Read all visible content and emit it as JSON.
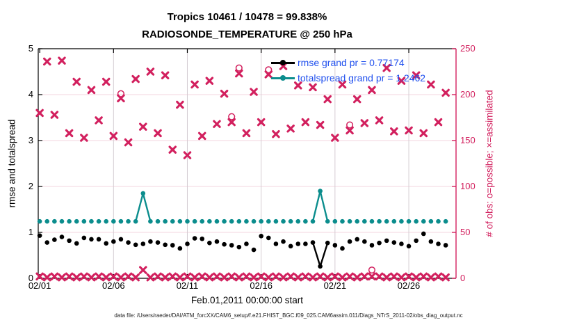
{
  "title": {
    "line1": "Tropics 10461 / 10478 = 99.838%",
    "line2": "RADIOSONDE_TEMPERATURE @ 250 hPa"
  },
  "axis": {
    "y_left_label": "rmse and totalspread",
    "y_right_label": "# of obs: o=possible; ×=assimilated",
    "x_label": "Feb.01,2011 00:00:00 start",
    "y_left_ticks": [
      0,
      1,
      2,
      3,
      4,
      5
    ],
    "y_right_ticks": [
      0,
      50,
      100,
      150,
      200,
      250
    ],
    "x_ticks": [
      {
        "t": 1,
        "label": "02/01"
      },
      {
        "t": 6,
        "label": "02/06"
      },
      {
        "t": 11,
        "label": "02/11"
      },
      {
        "t": 16,
        "label": "02/16"
      },
      {
        "t": 21,
        "label": "02/21"
      },
      {
        "t": 26,
        "label": "02/26"
      }
    ]
  },
  "legend": {
    "items": [
      {
        "label": "rmse grand pr = 0.77174",
        "color": "#000000"
      },
      {
        "label": "totalspread grand pr = 1.2462",
        "color": "#0b8d8d"
      }
    ],
    "text_color": "#2050ee"
  },
  "caption": "data file: /Users/raeder/DAI/ATM_forcXX/CAM6_setup/f.e21.FHIST_BGC.f09_025.CAM6assim.011/Diags_NTrS_2011-02/obs_diag_output.nc",
  "colors": {
    "obs_crimson": "#d2205e",
    "rmse_black": "#000000",
    "totalspread_teal": "#0b8d8d",
    "grid_horizontal": "#f3d4df",
    "grid_vertical": "#d4ccd2",
    "axis_left": "#000000",
    "axis_right": "#d2205e",
    "legend_text": "#2050ee"
  },
  "chart_data": {
    "type": "line",
    "x_label_note": "day of Feb 2011, two samples per day",
    "x": [
      1,
      1.5,
      2,
      2.5,
      3,
      3.5,
      4,
      4.5,
      5,
      5.5,
      6,
      6.5,
      7,
      7.5,
      8,
      8.5,
      9,
      9.5,
      10,
      10.5,
      11,
      11.5,
      12,
      12.5,
      13,
      13.5,
      14,
      14.5,
      15,
      15.5,
      16,
      16.5,
      17,
      17.5,
      18,
      18.5,
      19,
      19.5,
      20,
      20.5,
      21,
      21.5,
      22,
      22.5,
      23,
      23.5,
      24,
      24.5,
      25,
      25.5,
      26,
      26.5,
      27,
      27.5,
      28,
      28.5
    ],
    "xlim": [
      0.9,
      29.2
    ],
    "ylim_left": [
      0,
      5
    ],
    "ylim_right": [
      0,
      250
    ],
    "series": [
      {
        "name": "rmse",
        "axis": "left",
        "marker": "dot",
        "color": "#000000",
        "values": [
          0.93,
          0.78,
          0.84,
          0.9,
          0.82,
          0.76,
          0.88,
          0.85,
          0.85,
          0.76,
          0.8,
          0.85,
          0.78,
          0.73,
          0.75,
          0.8,
          0.78,
          0.73,
          0.72,
          0.65,
          0.75,
          0.87,
          0.86,
          0.77,
          0.8,
          0.74,
          0.72,
          0.68,
          0.75,
          0.62,
          0.92,
          0.88,
          0.75,
          0.8,
          0.7,
          0.75,
          0.75,
          0.78,
          0.26,
          0.77,
          0.72,
          0.65,
          0.8,
          0.85,
          0.8,
          0.72,
          0.77,
          0.82,
          0.78,
          0.75,
          0.7,
          0.82,
          0.97,
          0.8,
          0.75,
          0.72
        ]
      },
      {
        "name": "totalspread",
        "axis": "left",
        "marker": "dot",
        "color": "#0b8d8d",
        "values": [
          1.24,
          1.24,
          1.24,
          1.24,
          1.24,
          1.24,
          1.24,
          1.24,
          1.24,
          1.24,
          1.24,
          1.24,
          1.24,
          1.24,
          1.85,
          1.24,
          1.24,
          1.24,
          1.24,
          1.24,
          1.24,
          1.24,
          1.24,
          1.24,
          1.24,
          1.24,
          1.24,
          1.24,
          1.24,
          1.24,
          1.24,
          1.24,
          1.24,
          1.24,
          1.24,
          1.24,
          1.24,
          1.24,
          1.9,
          1.24,
          1.24,
          1.24,
          1.24,
          1.24,
          1.24,
          1.24,
          1.24,
          1.24,
          1.24,
          1.24,
          1.24,
          1.24,
          1.24,
          1.24,
          1.24,
          1.24
        ]
      },
      {
        "name": "n_assimilated",
        "axis": "right",
        "marker": "x",
        "color": "#d2205e",
        "values": [
          180,
          236,
          178,
          237,
          158,
          214,
          153,
          205,
          172,
          214,
          155,
          196,
          148,
          217,
          165,
          225,
          158,
          221,
          140,
          189,
          134,
          211,
          155,
          215,
          168,
          201,
          170,
          223,
          158,
          203,
          170,
          222,
          157,
          231,
          163,
          210,
          170,
          208,
          167,
          195,
          153,
          211,
          161,
          195,
          169,
          205,
          172,
          229,
          160,
          215,
          161,
          221,
          158,
          211,
          170,
          202
        ]
      },
      {
        "name": "n_possible",
        "axis": "right",
        "marker": "o",
        "color": "#d2205e",
        "values": [
          null,
          null,
          null,
          null,
          null,
          null,
          null,
          null,
          null,
          null,
          null,
          201,
          null,
          null,
          null,
          null,
          null,
          null,
          null,
          null,
          null,
          null,
          null,
          null,
          null,
          null,
          176,
          229,
          null,
          null,
          null,
          227,
          null,
          null,
          null,
          null,
          null,
          null,
          null,
          null,
          null,
          null,
          167,
          null,
          null,
          null,
          null,
          null,
          null,
          null,
          null,
          null,
          null,
          null,
          null,
          null
        ]
      },
      {
        "name": "n_assimilated_floor",
        "axis": "right",
        "marker": "x",
        "color": "#d2205e",
        "values": [
          2,
          1,
          2,
          1,
          2,
          1,
          2,
          1,
          2,
          1,
          2,
          1,
          2,
          1,
          9,
          1,
          2,
          1,
          2,
          1,
          2,
          1,
          2,
          1,
          2,
          1,
          2,
          1,
          2,
          1,
          2,
          1,
          2,
          1,
          2,
          1,
          2,
          1,
          2,
          1,
          2,
          1,
          2,
          1,
          2,
          2,
          2,
          1,
          2,
          1,
          2,
          1,
          2,
          1,
          2,
          1
        ]
      },
      {
        "name": "n_possible_floor",
        "axis": "right",
        "marker": "o",
        "color": "#d2205e",
        "values": [
          null,
          null,
          null,
          null,
          null,
          null,
          null,
          null,
          null,
          null,
          null,
          null,
          null,
          null,
          null,
          null,
          null,
          null,
          null,
          null,
          null,
          null,
          null,
          null,
          null,
          null,
          null,
          null,
          null,
          null,
          null,
          null,
          null,
          null,
          null,
          null,
          null,
          null,
          null,
          null,
          null,
          null,
          null,
          null,
          null,
          9,
          null,
          null,
          null,
          null,
          null,
          null,
          null,
          null,
          null,
          null
        ]
      }
    ],
    "legend_position": "upper center-right, no frame",
    "grid": "on"
  }
}
